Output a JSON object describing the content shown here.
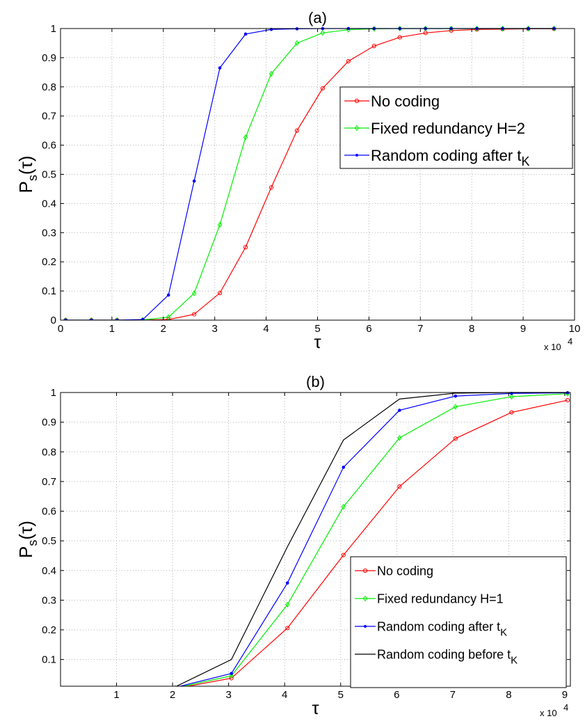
{
  "chart_data": [
    {
      "type": "line",
      "title": "(a)",
      "xlabel": "τ",
      "ylabel_main": "P",
      "ylabel_sub": "s",
      "ylabel_arg": "(τ)",
      "x_multiplier": "x 10",
      "x_multiplier_exp": "4",
      "xlim": [
        0,
        100000
      ],
      "ylim": [
        0,
        1
      ],
      "xticks": [
        0,
        10000,
        20000,
        30000,
        40000,
        50000,
        60000,
        70000,
        80000,
        90000,
        100000
      ],
      "xtick_labels": [
        "0",
        "1",
        "2",
        "3",
        "4",
        "5",
        "6",
        "7",
        "8",
        "9",
        "10"
      ],
      "yticks": [
        0,
        0.1,
        0.2,
        0.3,
        0.4,
        0.5,
        0.6,
        0.7,
        0.8,
        0.9,
        1
      ],
      "ytick_labels": [
        "0",
        "0.1",
        "0.2",
        "0.3",
        "0.4",
        "0.5",
        "0.6",
        "0.7",
        "0.8",
        "0.9",
        "1"
      ],
      "grid": true,
      "legend_placement": "right",
      "series": [
        {
          "name": "No coding",
          "color": "#ff0000",
          "marker": "circle",
          "x": [
            1000,
            6000,
            11000,
            16000,
            21000,
            26000,
            31000,
            36000,
            41000,
            46000,
            51000,
            56000,
            61000,
            66000,
            71000,
            76000,
            81000,
            86000,
            91000,
            96000
          ],
          "y": [
            0,
            0,
            0,
            0,
            0.002,
            0.02,
            0.093,
            0.25,
            0.455,
            0.65,
            0.795,
            0.888,
            0.94,
            0.97,
            0.985,
            0.993,
            0.997,
            0.998,
            0.999,
            0.999
          ]
        },
        {
          "name": "Fixed redundancy H=2",
          "color": "#00ee00",
          "marker": "diamond",
          "x": [
            1000,
            6000,
            11000,
            16000,
            21000,
            26000,
            31000,
            36000,
            41000,
            46000,
            51000,
            56000,
            61000,
            66000,
            71000,
            76000,
            81000,
            86000,
            91000,
            96000
          ],
          "y": [
            0,
            0,
            0,
            0.001,
            0.01,
            0.092,
            0.327,
            0.627,
            0.845,
            0.95,
            0.985,
            0.996,
            0.999,
            1,
            1,
            1,
            1,
            1,
            1,
            1
          ]
        },
        {
          "name_main": "Random coding after t",
          "name_sub": "K",
          "color": "#0000ff",
          "marker": "dot",
          "x": [
            1000,
            6000,
            11000,
            16000,
            21000,
            26000,
            31000,
            36000,
            41000,
            46000,
            51000,
            56000,
            61000,
            66000,
            71000,
            76000,
            81000,
            86000,
            91000,
            96000
          ],
          "y": [
            0,
            0,
            0,
            0.002,
            0.086,
            0.477,
            0.865,
            0.981,
            0.997,
            0.999,
            1,
            1,
            1,
            1,
            1,
            1,
            1,
            1,
            1,
            1
          ]
        }
      ]
    },
    {
      "type": "line",
      "title": "(b)",
      "xlabel": "τ",
      "ylabel_main": "P",
      "ylabel_sub": "s",
      "ylabel_arg": "(τ)",
      "x_multiplier": "x 10",
      "x_multiplier_exp": "4",
      "xlim": [
        0,
        91000
      ],
      "ylim": [
        0.01,
        1
      ],
      "xticks": [
        10000,
        20000,
        30000,
        40000,
        50000,
        60000,
        70000,
        80000,
        90000
      ],
      "xtick_labels": [
        "1",
        "2",
        "3",
        "4",
        "5",
        "6",
        "7",
        "8",
        "9"
      ],
      "yticks": [
        0.1,
        0.2,
        0.3,
        0.4,
        0.5,
        0.6,
        0.7,
        0.8,
        0.9,
        1
      ],
      "ytick_labels": [
        "0.1",
        "0.2",
        "0.3",
        "0.4",
        "0.5",
        "0.6",
        "0.7",
        "0.8",
        "0.9",
        "1"
      ],
      "grid": true,
      "legend_placement": "bottom-right",
      "series": [
        {
          "name": "No coding",
          "color": "#ff0000",
          "marker": "circle",
          "x": [
            20500,
            30500,
            40500,
            50500,
            60500,
            70500,
            80500,
            90500
          ],
          "y": [
            0.002,
            0.037,
            0.206,
            0.452,
            0.683,
            0.845,
            0.933,
            0.974
          ]
        },
        {
          "name": "Fixed redundancy H=1",
          "color": "#00ee00",
          "marker": "diamond",
          "x": [
            20500,
            30500,
            40500,
            50500,
            60500,
            70500,
            80500,
            90500
          ],
          "y": [
            0.004,
            0.045,
            0.285,
            0.615,
            0.847,
            0.952,
            0.986,
            0.996
          ]
        },
        {
          "name_main": "Random coding after t",
          "name_sub": "K",
          "color": "#0000ff",
          "marker": "dot",
          "x": [
            20500,
            30500,
            40500,
            50500,
            60500,
            70500,
            80500,
            90500
          ],
          "y": [
            0.006,
            0.053,
            0.358,
            0.748,
            0.94,
            0.988,
            0.997,
            0.999
          ]
        },
        {
          "name_main": "Random coding before t",
          "name_sub": "K",
          "color": "#000000",
          "marker": "none",
          "x": [
            20500,
            30500,
            40500,
            50500,
            60500,
            70500,
            80500,
            90500
          ],
          "y": [
            0.008,
            0.1,
            0.48,
            0.84,
            0.978,
            0.998,
            1,
            1
          ]
        }
      ]
    }
  ]
}
